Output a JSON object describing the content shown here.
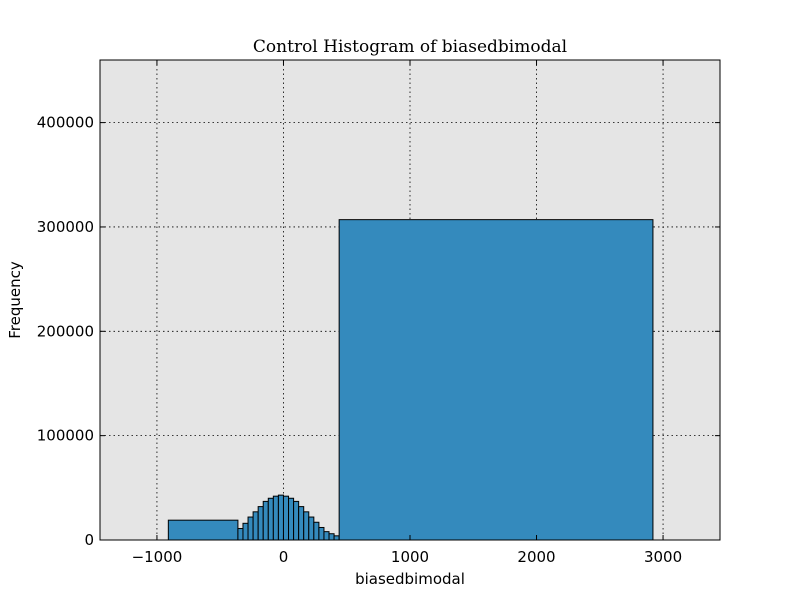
{
  "chart_data": {
    "type": "bar",
    "title": "Control Histogram of biasedbimodal",
    "xlabel": "biasedbimodal",
    "ylabel": "Frequency",
    "xlim": [
      -1450,
      3450
    ],
    "ylim": [
      0,
      460000
    ],
    "xticks": [
      -1000,
      0,
      1000,
      2000,
      3000
    ],
    "xtick_labels": [
      "−1000",
      "0",
      "1000",
      "2000",
      "3000"
    ],
    "yticks": [
      0,
      100000,
      200000,
      300000,
      400000
    ],
    "ytick_labels": [
      "0",
      "100000",
      "200000",
      "300000",
      "400000"
    ],
    "grid": true,
    "background": "#e5e5e5",
    "bar_color": "#348abd",
    "bins": [
      {
        "x0": -910,
        "x1": -360,
        "value": 19000
      },
      {
        "x0": -360,
        "x1": -320,
        "value": 11000
      },
      {
        "x0": -320,
        "x1": -280,
        "value": 16000
      },
      {
        "x0": -280,
        "x1": -240,
        "value": 22000
      },
      {
        "x0": -240,
        "x1": -200,
        "value": 27000
      },
      {
        "x0": -200,
        "x1": -160,
        "value": 32000
      },
      {
        "x0": -160,
        "x1": -120,
        "value": 37000
      },
      {
        "x0": -120,
        "x1": -80,
        "value": 40000
      },
      {
        "x0": -80,
        "x1": -40,
        "value": 42000
      },
      {
        "x0": -40,
        "x1": 0,
        "value": 43000
      },
      {
        "x0": 0,
        "x1": 40,
        "value": 42000
      },
      {
        "x0": 40,
        "x1": 80,
        "value": 40000
      },
      {
        "x0": 80,
        "x1": 120,
        "value": 37000
      },
      {
        "x0": 120,
        "x1": 160,
        "value": 32000
      },
      {
        "x0": 160,
        "x1": 200,
        "value": 27000
      },
      {
        "x0": 200,
        "x1": 240,
        "value": 22000
      },
      {
        "x0": 240,
        "x1": 280,
        "value": 17000
      },
      {
        "x0": 280,
        "x1": 320,
        "value": 12000
      },
      {
        "x0": 320,
        "x1": 360,
        "value": 8000
      },
      {
        "x0": 360,
        "x1": 400,
        "value": 6000
      },
      {
        "x0": 400,
        "x1": 440,
        "value": 4000
      },
      {
        "x0": 440,
        "x1": 2920,
        "value": 307000
      }
    ]
  }
}
